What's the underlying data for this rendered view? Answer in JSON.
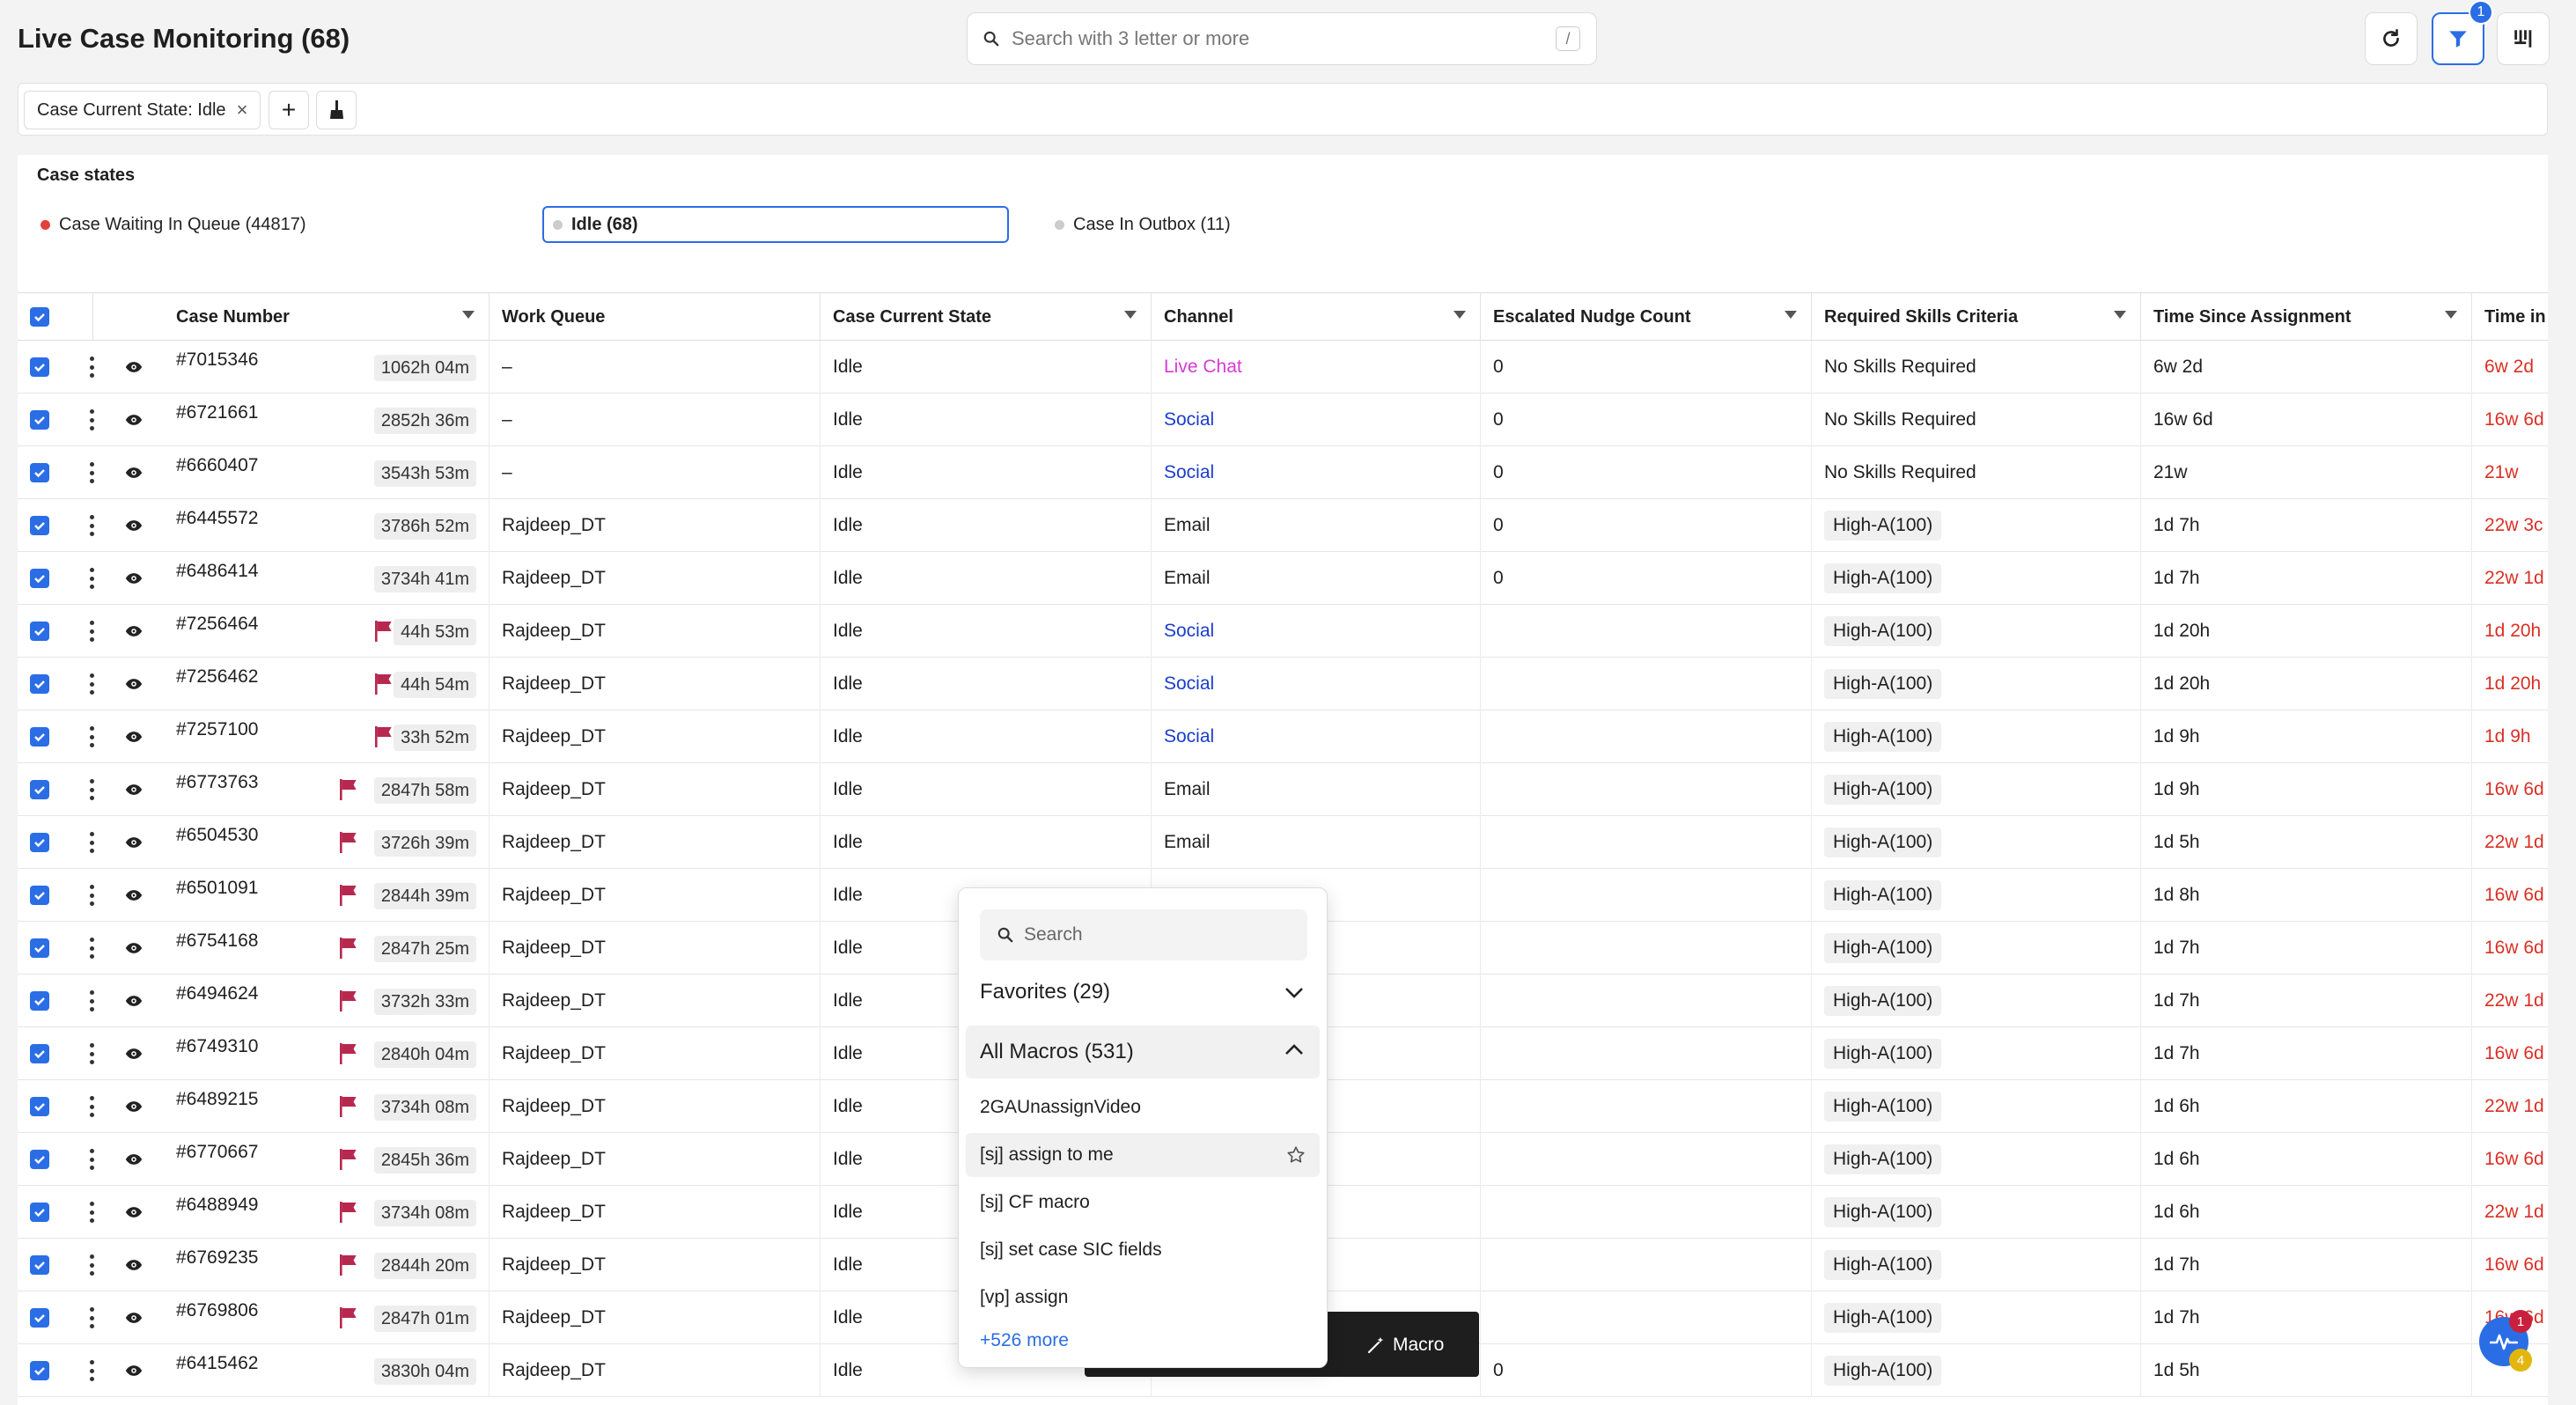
{
  "header": {
    "title": "Live Case Monitoring (68)",
    "search_placeholder": "Search with 3 letter or more",
    "search_shortcut": "/",
    "filter_badge": "1"
  },
  "filters": {
    "chip_label": "Case Current State: Idle",
    "chip_close": "×",
    "add_label": "+"
  },
  "case_states": {
    "heading": "Case states",
    "items": [
      {
        "label": "Case Waiting In Queue (44817)",
        "dot_color": "#e0413a"
      },
      {
        "label": "Idle (68)",
        "dot_color": "#cccccc"
      },
      {
        "label": "Case In Outbox (11)",
        "dot_color": "#cccccc"
      }
    ]
  },
  "table": {
    "columns": [
      "Case Number",
      "Work Queue",
      "Case Current State",
      "Channel",
      "Escalated Nudge Count",
      "Required Skills Criteria",
      "Time Since Assignment",
      "Time in"
    ],
    "rows": [
      {
        "case": "#7015346",
        "flag": false,
        "dur": "1062h 04m",
        "queue": "–",
        "state": "Idle",
        "channel": "Live Chat",
        "channel_style": "live",
        "nudge": "0",
        "skill": "No Skills Required",
        "skill_chip": false,
        "tsa": "6w 2d",
        "tin": "6w 2d"
      },
      {
        "case": "#6721661",
        "flag": false,
        "dur": "2852h 36m",
        "queue": "–",
        "state": "Idle",
        "channel": "Social",
        "channel_style": "link",
        "nudge": "0",
        "skill": "No Skills Required",
        "skill_chip": false,
        "tsa": "16w 6d",
        "tin": "16w 6d"
      },
      {
        "case": "#6660407",
        "flag": false,
        "dur": "3543h 53m",
        "queue": "–",
        "state": "Idle",
        "channel": "Social",
        "channel_style": "link",
        "nudge": "0",
        "skill": "No Skills Required",
        "skill_chip": false,
        "tsa": "21w",
        "tin": "21w"
      },
      {
        "case": "#6445572",
        "flag": false,
        "dur": "3786h 52m",
        "queue": "Rajdeep_DT",
        "state": "Idle",
        "channel": "Email",
        "channel_style": "plain",
        "nudge": "0",
        "skill": "High-A(100)",
        "skill_chip": true,
        "tsa": "1d 7h",
        "tin": "22w 3c"
      },
      {
        "case": "#6486414",
        "flag": false,
        "dur": "3734h 41m",
        "queue": "Rajdeep_DT",
        "state": "Idle",
        "channel": "Email",
        "channel_style": "plain",
        "nudge": "0",
        "skill": "High-A(100)",
        "skill_chip": true,
        "tsa": "1d 7h",
        "tin": "22w 1d"
      },
      {
        "case": "#7256464",
        "flag": true,
        "dur": "44h 53m",
        "queue": "Rajdeep_DT",
        "state": "Idle",
        "channel": "Social",
        "channel_style": "link",
        "nudge": "",
        "skill": "High-A(100)",
        "skill_chip": true,
        "tsa": "1d 20h",
        "tin": "1d 20h"
      },
      {
        "case": "#7256462",
        "flag": true,
        "dur": "44h 54m",
        "queue": "Rajdeep_DT",
        "state": "Idle",
        "channel": "Social",
        "channel_style": "link",
        "nudge": "",
        "skill": "High-A(100)",
        "skill_chip": true,
        "tsa": "1d 20h",
        "tin": "1d 20h"
      },
      {
        "case": "#7257100",
        "flag": true,
        "dur": "33h 52m",
        "queue": "Rajdeep_DT",
        "state": "Idle",
        "channel": "Social",
        "channel_style": "link",
        "nudge": "",
        "skill": "High-A(100)",
        "skill_chip": true,
        "tsa": "1d 9h",
        "tin": "1d 9h"
      },
      {
        "case": "#6773763",
        "flag": true,
        "dur": "2847h 58m",
        "queue": "Rajdeep_DT",
        "state": "Idle",
        "channel": "Email",
        "channel_style": "plain",
        "nudge": "",
        "skill": "High-A(100)",
        "skill_chip": true,
        "tsa": "1d 9h",
        "tin": "16w 6d"
      },
      {
        "case": "#6504530",
        "flag": true,
        "dur": "3726h 39m",
        "queue": "Rajdeep_DT",
        "state": "Idle",
        "channel": "Email",
        "channel_style": "plain",
        "nudge": "",
        "skill": "High-A(100)",
        "skill_chip": true,
        "tsa": "1d 5h",
        "tin": "22w 1d"
      },
      {
        "case": "#6501091",
        "flag": true,
        "dur": "2844h 39m",
        "queue": "Rajdeep_DT",
        "state": "Idle",
        "channel": "",
        "channel_style": "plain",
        "nudge": "",
        "skill": "High-A(100)",
        "skill_chip": true,
        "tsa": "1d 8h",
        "tin": "16w 6d"
      },
      {
        "case": "#6754168",
        "flag": true,
        "dur": "2847h 25m",
        "queue": "Rajdeep_DT",
        "state": "Idle",
        "channel": "",
        "channel_style": "plain",
        "nudge": "",
        "skill": "High-A(100)",
        "skill_chip": true,
        "tsa": "1d 7h",
        "tin": "16w 6d"
      },
      {
        "case": "#6494624",
        "flag": true,
        "dur": "3732h 33m",
        "queue": "Rajdeep_DT",
        "state": "Idle",
        "channel": "",
        "channel_style": "plain",
        "nudge": "",
        "skill": "High-A(100)",
        "skill_chip": true,
        "tsa": "1d 7h",
        "tin": "22w 1d"
      },
      {
        "case": "#6749310",
        "flag": true,
        "dur": "2840h 04m",
        "queue": "Rajdeep_DT",
        "state": "Idle",
        "channel": "",
        "channel_style": "plain",
        "nudge": "",
        "skill": "High-A(100)",
        "skill_chip": true,
        "tsa": "1d 7h",
        "tin": "16w 6d"
      },
      {
        "case": "#6489215",
        "flag": true,
        "dur": "3734h 08m",
        "queue": "Rajdeep_DT",
        "state": "Idle",
        "channel": "",
        "channel_style": "plain",
        "nudge": "",
        "skill": "High-A(100)",
        "skill_chip": true,
        "tsa": "1d 6h",
        "tin": "22w 1d"
      },
      {
        "case": "#6770667",
        "flag": true,
        "dur": "2845h 36m",
        "queue": "Rajdeep_DT",
        "state": "Idle",
        "channel": "",
        "channel_style": "plain",
        "nudge": "",
        "skill": "High-A(100)",
        "skill_chip": true,
        "tsa": "1d 6h",
        "tin": "16w 6d"
      },
      {
        "case": "#6488949",
        "flag": true,
        "dur": "3734h 08m",
        "queue": "Rajdeep_DT",
        "state": "Idle",
        "channel": "",
        "channel_style": "plain",
        "nudge": "",
        "skill": "High-A(100)",
        "skill_chip": true,
        "tsa": "1d 6h",
        "tin": "22w 1d"
      },
      {
        "case": "#6769235",
        "flag": true,
        "dur": "2844h 20m",
        "queue": "Rajdeep_DT",
        "state": "Idle",
        "channel": "",
        "channel_style": "plain",
        "nudge": "",
        "skill": "High-A(100)",
        "skill_chip": true,
        "tsa": "1d 7h",
        "tin": "16w 6d"
      },
      {
        "case": "#6769806",
        "flag": true,
        "dur": "2847h 01m",
        "queue": "Rajdeep_DT",
        "state": "Idle",
        "channel": "",
        "channel_style": "plain",
        "nudge": "",
        "skill": "High-A(100)",
        "skill_chip": true,
        "tsa": "1d 7h",
        "tin": "16w 6d"
      },
      {
        "case": "#6415462",
        "flag": false,
        "dur": "3830h 04m",
        "queue": "Rajdeep_DT",
        "state": "Idle",
        "channel": "",
        "channel_style": "plain",
        "nudge": "0",
        "skill": "High-A(100)",
        "skill_chip": true,
        "tsa": "1d 5h",
        "tin": ""
      }
    ]
  },
  "macro_dropdown": {
    "search_placeholder": "Search",
    "favorites_label": "Favorites (29)",
    "all_label": "All Macros (531)",
    "items": [
      "2GAUnassignVideo",
      "[sj] assign to me",
      "[sj] CF macro",
      "[sj] set case SIC fields",
      "[vp] assign"
    ],
    "more_label": "+526 more"
  },
  "macro_button": {
    "label": "Macro"
  },
  "notifications": {
    "badge_top": "1",
    "badge_bottom": "4"
  }
}
